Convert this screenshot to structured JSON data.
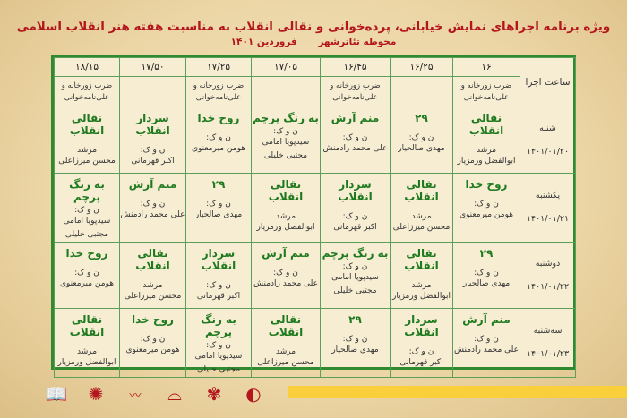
{
  "header": {
    "title": "ویژه برنامه اجراهای نمایش خیابانی، پرده‌خوانی و نقالی انقلاب به مناسبت هفته هنر انقلاب اسلامی",
    "venue": "محوطه تئاترشهر",
    "date": "فروردین ۱۴۰۱"
  },
  "colors": {
    "title": "#b3161d",
    "grid": "#2f8a30",
    "cell_title": "#1f7a1f",
    "bar": "#f9cf3c"
  },
  "schedule": {
    "time_label": "ساعت اجرا",
    "times": [
      "۱۶",
      "۱۶/۲۵",
      "۱۶/۴۵",
      "۱۷/۰۵",
      "۱۷/۲۵",
      "۱۷/۵۰",
      "۱۸/۱۵"
    ],
    "subheaders": [
      "ضرب زورخانه و علی‌نامه‌خوانی",
      "",
      "ضرب زورخانه و علی‌نامه‌خوانی",
      "",
      "ضرب زورخانه و علی‌نامه‌خوانی",
      "",
      "ضرب زورخانه و علی‌نامه‌خوانی"
    ],
    "days": [
      {
        "day": "شنبه",
        "date": "۱۴۰۱/۰۱/۲۰",
        "cells": [
          {
            "title": "نقالی انقلاب",
            "role": "مرشد",
            "names": [
              "ابوالفضل ورمزیار"
            ]
          },
          {
            "title": "۲۹",
            "role": "ن و ک:",
            "names": [
              "مهدی صالحیار"
            ]
          },
          {
            "title": "منم آرش",
            "role": "ن و ک:",
            "names": [
              "علی محمد رادمنش"
            ]
          },
          {
            "title": "به رنگ پرچم",
            "role": "ن و ک:",
            "names": [
              "سیدپویا امامی",
              "مجتبی خلیلی"
            ]
          },
          {
            "title": "روح خدا",
            "role": "ن و ک:",
            "names": [
              "هومن میرمعنوی"
            ]
          },
          {
            "title": "سردار انقلاب",
            "role": "ن و ک:",
            "names": [
              "اکبر قهرمانی"
            ]
          },
          {
            "title": "نقالی انقلاب",
            "role": "مرشد",
            "names": [
              "محسن میرزاعلی"
            ]
          }
        ]
      },
      {
        "day": "یکشنبه",
        "date": "۱۴۰۱/۰۱/۲۱",
        "cells": [
          {
            "title": "روح خدا",
            "role": "ن و ک:",
            "names": [
              "هومن میرمعنوی"
            ]
          },
          {
            "title": "نقالی انقلاب",
            "role": "مرشد",
            "names": [
              "محسن میرزاعلی"
            ]
          },
          {
            "title": "سردار انقلاب",
            "role": "ن و ک:",
            "names": [
              "اکبر قهرمانی"
            ]
          },
          {
            "title": "نقالی انقلاب",
            "role": "مرشد",
            "names": [
              "ابوالفضل ورمزیار"
            ]
          },
          {
            "title": "۲۹",
            "role": "ن و ک:",
            "names": [
              "مهدی صالحیار"
            ]
          },
          {
            "title": "منم آرش",
            "role": "ن و ک:",
            "names": [
              "علی محمد رادمنش"
            ]
          },
          {
            "title": "به رنگ پرچم",
            "role": "ن و ک:",
            "names": [
              "سیدپویا امامی",
              "مجتبی خلیلی"
            ]
          }
        ]
      },
      {
        "day": "دوشنبه",
        "date": "۱۴۰۱/۰۱/۲۲",
        "cells": [
          {
            "title": "۲۹",
            "role": "ن و ک:",
            "names": [
              "مهدی صالحیار"
            ]
          },
          {
            "title": "نقالی انقلاب",
            "role": "مرشد",
            "names": [
              "ابوالفضل ورمزیار"
            ]
          },
          {
            "title": "به رنگ پرچم",
            "role": "ن و ک:",
            "names": [
              "سیدپویا امامی",
              "مجتبی خلیلی"
            ]
          },
          {
            "title": "منم آرش",
            "role": "ن و ک:",
            "names": [
              "علی محمد رادمنش"
            ]
          },
          {
            "title": "سردار انقلاب",
            "role": "ن و ک:",
            "names": [
              "اکبر قهرمانی"
            ]
          },
          {
            "title": "نقالی انقلاب",
            "role": "مرشد",
            "names": [
              "محسن میرزاعلی"
            ]
          },
          {
            "title": "روح خدا",
            "role": "ن و ک:",
            "names": [
              "هومن میرمعنوی"
            ]
          }
        ]
      },
      {
        "day": "سه‌شنبه",
        "date": "۱۴۰۱/۰۱/۲۳",
        "cells": [
          {
            "title": "منم آرش",
            "role": "ن و ک:",
            "names": [
              "علی محمد رادمنش"
            ]
          },
          {
            "title": "سردار انقلاب",
            "role": "ن و ک:",
            "names": [
              "اکبر قهرمانی"
            ]
          },
          {
            "title": "۲۹",
            "role": "ن و ک:",
            "names": [
              "مهدی صالحیار"
            ]
          },
          {
            "title": "نقالی انقلاب",
            "role": "مرشد",
            "names": [
              "محسن میرزاعلی"
            ]
          },
          {
            "title": "به رنگ پرچم",
            "role": "ن و ک:",
            "names": [
              "سیدپویا امامی",
              "مجتبی خلیلی"
            ]
          },
          {
            "title": "روح خدا",
            "role": "ن و ک:",
            "names": [
              "هومن میرمعنوی"
            ]
          },
          {
            "title": "نقالی انقلاب",
            "role": "مرشد",
            "names": [
              "ابوالفضل ورمزیار"
            ]
          }
        ]
      }
    ]
  },
  "footer": {
    "logos": [
      "logo-1-icon",
      "logo-2-icon",
      "logo-3-icon",
      "logo-4-icon",
      "logo-5-icon",
      "logo-6-icon"
    ]
  }
}
